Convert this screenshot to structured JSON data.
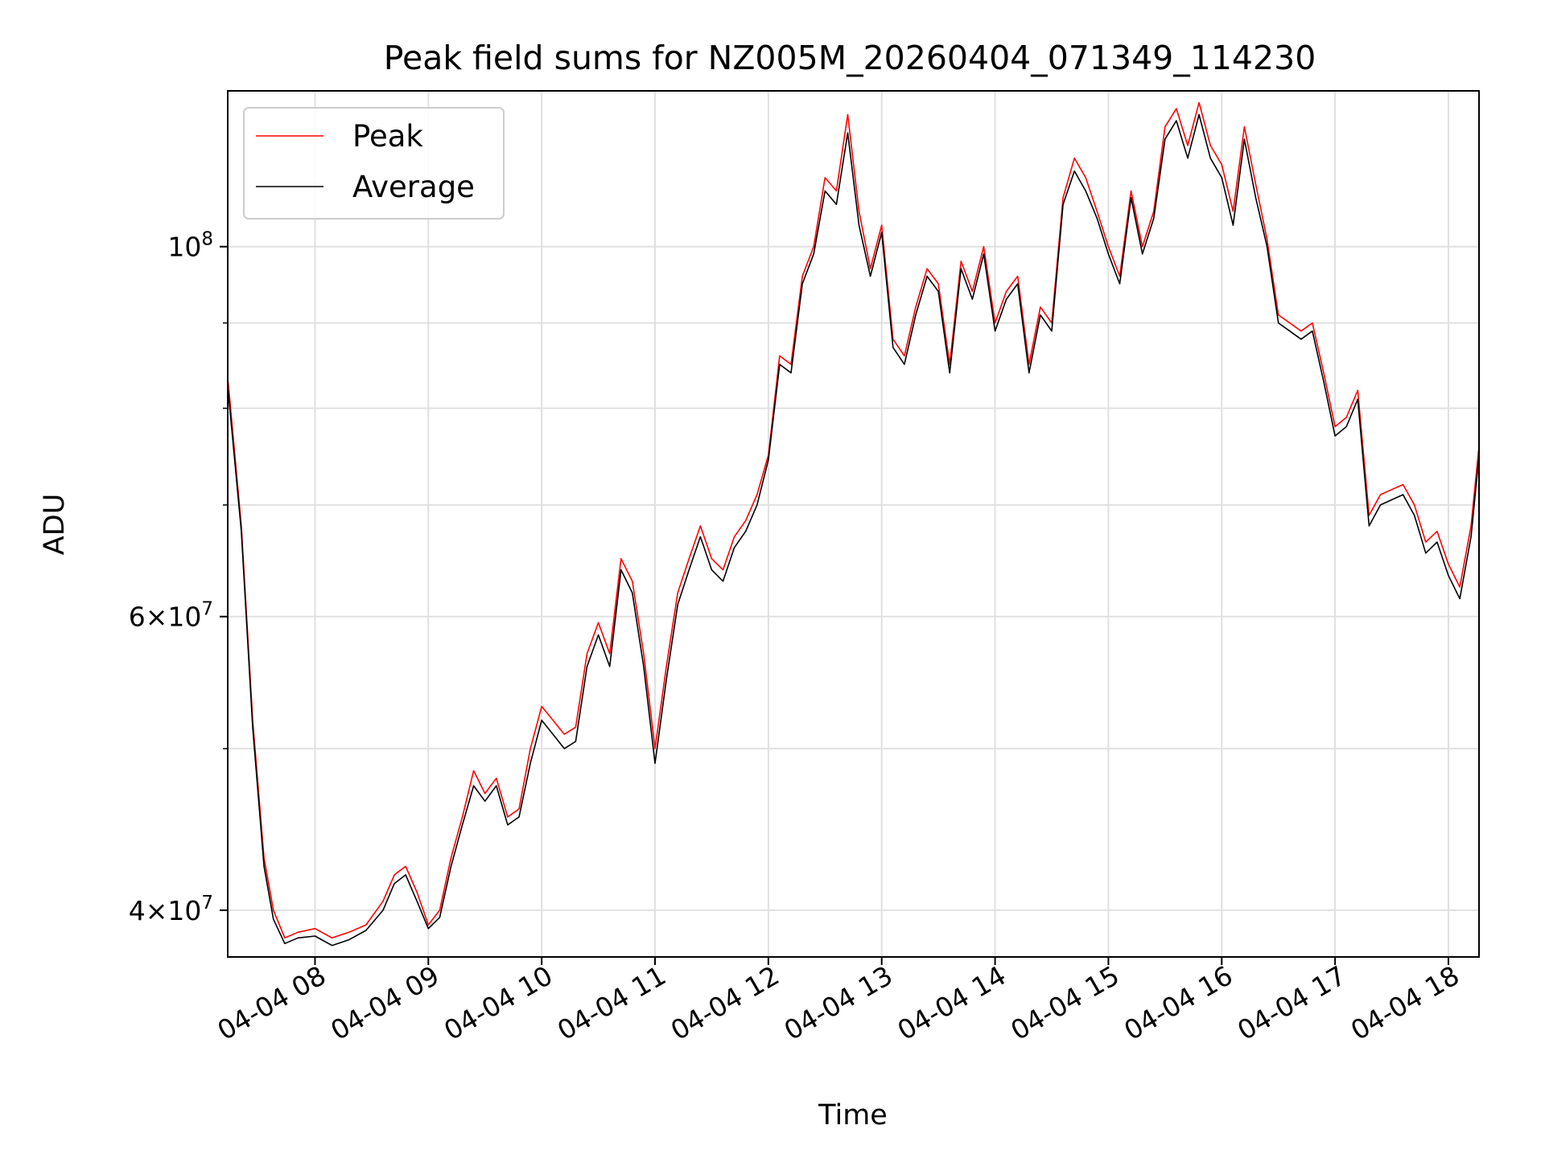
{
  "chart_data": {
    "type": "line",
    "title": "Peak field sums for NZ005M_20260404_071349_114230",
    "xlabel": "Time",
    "ylabel": "ADU",
    "y_scale": "log",
    "x_range_hours": [
      7.23,
      18.27
    ],
    "ylim": [
      37500000,
      124000000
    ],
    "grid": true,
    "legend_position": "top-left",
    "x_tick_labels": [
      "04-04 08",
      "04-04 09",
      "04-04 10",
      "04-04 11",
      "04-04 12",
      "04-04 13",
      "04-04 14",
      "04-04 15",
      "04-04 16",
      "04-04 17",
      "04-04 18"
    ],
    "y_tick_labels": [
      {
        "value": 40000000,
        "base": "4×10",
        "exp": "7"
      },
      {
        "value": 60000000,
        "base": "6×10",
        "exp": "7"
      },
      {
        "value": 100000000,
        "base": "10",
        "exp": "8"
      }
    ],
    "y_minor_ticks": [
      50000000,
      70000000,
      80000000,
      90000000
    ],
    "series": [
      {
        "name": "Peak",
        "color": "#ff0000",
        "x_time": [
          "04-04 07:14",
          "04-04 07:21",
          "04-04 07:27",
          "04-04 07:33",
          "04-04 07:38",
          "04-04 07:44",
          "04-04 07:51",
          "04-04 08:00",
          "04-04 08:09",
          "04-04 08:18",
          "04-04 08:27",
          "04-04 08:36",
          "04-04 08:42",
          "04-04 08:48",
          "04-04 08:54",
          "04-04 09:00",
          "04-04 09:06",
          "04-04 09:12",
          "04-04 09:18",
          "04-04 09:24",
          "04-04 09:30",
          "04-04 09:36",
          "04-04 09:42",
          "04-04 09:48",
          "04-04 09:54",
          "04-04 10:00",
          "04-04 10:06",
          "04-04 10:12",
          "04-04 10:18",
          "04-04 10:24",
          "04-04 10:30",
          "04-04 10:36",
          "04-04 10:42",
          "04-04 10:48",
          "04-04 10:54",
          "04-04 11:00",
          "04-04 11:06",
          "04-04 11:12",
          "04-04 11:18",
          "04-04 11:24",
          "04-04 11:30",
          "04-04 11:36",
          "04-04 11:42",
          "04-04 11:48",
          "04-04 11:54",
          "04-04 12:00",
          "04-04 12:06",
          "04-04 12:12",
          "04-04 12:18",
          "04-04 12:24",
          "04-04 12:30",
          "04-04 12:36",
          "04-04 12:42",
          "04-04 12:48",
          "04-04 12:54",
          "04-04 13:00",
          "04-04 13:06",
          "04-04 13:12",
          "04-04 13:18",
          "04-04 13:24",
          "04-04 13:30",
          "04-04 13:36",
          "04-04 13:42",
          "04-04 13:48",
          "04-04 13:54",
          "04-04 14:00",
          "04-04 14:06",
          "04-04 14:12",
          "04-04 14:18",
          "04-04 14:24",
          "04-04 14:30",
          "04-04 14:36",
          "04-04 14:42",
          "04-04 14:48",
          "04-04 14:54",
          "04-04 15:00",
          "04-04 15:06",
          "04-04 15:12",
          "04-04 15:18",
          "04-04 15:24",
          "04-04 15:30",
          "04-04 15:36",
          "04-04 15:42",
          "04-04 15:48",
          "04-04 15:54",
          "04-04 16:00",
          "04-04 16:06",
          "04-04 16:12",
          "04-04 16:18",
          "04-04 16:24",
          "04-04 16:30",
          "04-04 16:36",
          "04-04 16:42",
          "04-04 16:48",
          "04-04 16:54",
          "04-04 17:00",
          "04-04 17:06",
          "04-04 17:12",
          "04-04 17:18",
          "04-04 17:24",
          "04-04 17:30",
          "04-04 17:36",
          "04-04 17:42",
          "04-04 17:48",
          "04-04 17:54",
          "04-04 18:00",
          "04-04 18:06",
          "04-04 18:12",
          "04-04 18:16"
        ],
        "values": [
          83000000,
          68000000,
          52000000,
          43000000,
          40000000,
          38500000,
          38800000,
          39000000,
          38500000,
          38800000,
          39200000,
          40500000,
          42000000,
          42500000,
          41000000,
          39200000,
          40000000,
          43000000,
          45500000,
          48500000,
          47000000,
          48000000,
          45500000,
          46000000,
          50000000,
          53000000,
          52000000,
          51000000,
          51500000,
          57000000,
          59500000,
          57000000,
          65000000,
          63000000,
          57000000,
          50000000,
          56000000,
          62000000,
          65000000,
          68000000,
          65000000,
          64000000,
          67000000,
          68500000,
          71000000,
          75000000,
          86000000,
          85000000,
          96000000,
          100000000,
          110000000,
          108000000,
          120000000,
          105000000,
          97000000,
          103000000,
          88000000,
          86000000,
          92000000,
          97000000,
          95000000,
          85000000,
          98000000,
          94000000,
          100000000,
          90000000,
          94000000,
          96000000,
          85000000,
          92000000,
          90000000,
          107000000,
          113000000,
          110000000,
          105000000,
          100000000,
          96000000,
          108000000,
          100000000,
          105000000,
          118000000,
          121000000,
          115000000,
          122000000,
          115000000,
          112000000,
          105000000,
          118000000,
          109000000,
          101000000,
          91000000,
          90000000,
          89000000,
          90000000,
          84000000,
          78000000,
          79000000,
          82000000,
          69000000,
          71000000,
          71500000,
          72000000,
          70000000,
          66500000,
          67500000,
          64500000,
          62500000,
          68000000,
          75500000
        ]
      },
      {
        "name": "Average",
        "color": "#000000",
        "x_time": [
          "04-04 07:14",
          "04-04 07:21",
          "04-04 07:27",
          "04-04 07:33",
          "04-04 07:38",
          "04-04 07:44",
          "04-04 07:51",
          "04-04 08:00",
          "04-04 08:09",
          "04-04 08:18",
          "04-04 08:27",
          "04-04 08:36",
          "04-04 08:42",
          "04-04 08:48",
          "04-04 08:54",
          "04-04 09:00",
          "04-04 09:06",
          "04-04 09:12",
          "04-04 09:18",
          "04-04 09:24",
          "04-04 09:30",
          "04-04 09:36",
          "04-04 09:42",
          "04-04 09:48",
          "04-04 09:54",
          "04-04 10:00",
          "04-04 10:06",
          "04-04 10:12",
          "04-04 10:18",
          "04-04 10:24",
          "04-04 10:30",
          "04-04 10:36",
          "04-04 10:42",
          "04-04 10:48",
          "04-04 10:54",
          "04-04 11:00",
          "04-04 11:06",
          "04-04 11:12",
          "04-04 11:18",
          "04-04 11:24",
          "04-04 11:30",
          "04-04 11:36",
          "04-04 11:42",
          "04-04 11:48",
          "04-04 11:54",
          "04-04 12:00",
          "04-04 12:06",
          "04-04 12:12",
          "04-04 12:18",
          "04-04 12:24",
          "04-04 12:30",
          "04-04 12:36",
          "04-04 12:42",
          "04-04 12:48",
          "04-04 12:54",
          "04-04 13:00",
          "04-04 13:06",
          "04-04 13:12",
          "04-04 13:18",
          "04-04 13:24",
          "04-04 13:30",
          "04-04 13:36",
          "04-04 13:42",
          "04-04 13:48",
          "04-04 13:54",
          "04-04 14:00",
          "04-04 14:06",
          "04-04 14:12",
          "04-04 14:18",
          "04-04 14:24",
          "04-04 14:30",
          "04-04 14:36",
          "04-04 14:42",
          "04-04 14:48",
          "04-04 14:54",
          "04-04 15:00",
          "04-04 15:06",
          "04-04 15:12",
          "04-04 15:18",
          "04-04 15:24",
          "04-04 15:30",
          "04-04 15:36",
          "04-04 15:42",
          "04-04 15:48",
          "04-04 15:54",
          "04-04 16:00",
          "04-04 16:06",
          "04-04 16:12",
          "04-04 16:18",
          "04-04 16:24",
          "04-04 16:30",
          "04-04 16:36",
          "04-04 16:42",
          "04-04 16:48",
          "04-04 16:54",
          "04-04 17:00",
          "04-04 17:06",
          "04-04 17:12",
          "04-04 17:18",
          "04-04 17:24",
          "04-04 17:30",
          "04-04 17:36",
          "04-04 17:42",
          "04-04 17:48",
          "04-04 17:54",
          "04-04 18:00",
          "04-04 18:06",
          "04-04 18:12",
          "04-04 18:16"
        ],
        "values": [
          82000000,
          67500000,
          51500000,
          42500000,
          39500000,
          38200000,
          38500000,
          38600000,
          38100000,
          38400000,
          38900000,
          40000000,
          41500000,
          42000000,
          40500000,
          39000000,
          39600000,
          42500000,
          45000000,
          47500000,
          46500000,
          47500000,
          45000000,
          45500000,
          49000000,
          52000000,
          51000000,
          50000000,
          50500000,
          56000000,
          58500000,
          56000000,
          64000000,
          62000000,
          56000000,
          49000000,
          55000000,
          61000000,
          64000000,
          67000000,
          64000000,
          63000000,
          66000000,
          67500000,
          70000000,
          74500000,
          85000000,
          84000000,
          95000000,
          99000000,
          108000000,
          106000000,
          117000000,
          103000000,
          96000000,
          102000000,
          87000000,
          85000000,
          91000000,
          96000000,
          94000000,
          84000000,
          97000000,
          93000000,
          99000000,
          89000000,
          93000000,
          95000000,
          84000000,
          91000000,
          89000000,
          106000000,
          111000000,
          108000000,
          104000000,
          99000000,
          95000000,
          107000000,
          99000000,
          104000000,
          116000000,
          119000000,
          113000000,
          120000000,
          113000000,
          110000000,
          103000000,
          116000000,
          107000000,
          100000000,
          90000000,
          89000000,
          88000000,
          89000000,
          83000000,
          77000000,
          78000000,
          81000000,
          68000000,
          70000000,
          70500000,
          71000000,
          69000000,
          65500000,
          66500000,
          63500000,
          61500000,
          67000000,
          74500000
        ]
      }
    ]
  }
}
